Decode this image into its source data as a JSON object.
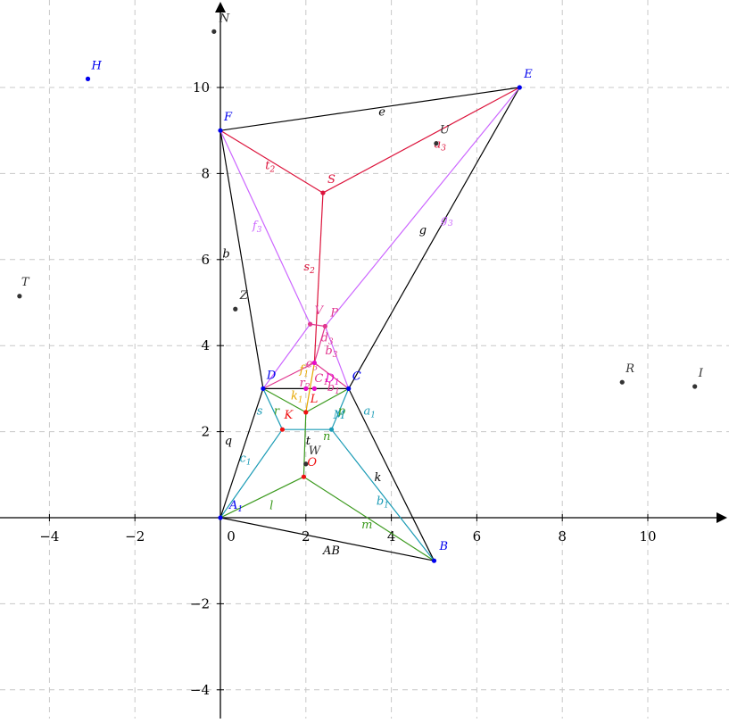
{
  "axes": {
    "x_range": [
      -5.2,
      11.8
    ],
    "y_range": [
      -4.6,
      11.8
    ],
    "x_ticks": [
      -4,
      -2,
      0,
      2,
      4,
      6,
      8,
      10
    ],
    "y_ticks": [
      -4,
      -2,
      2,
      4,
      6,
      8,
      10
    ],
    "x_tick_labels": [
      "−4",
      "−2",
      "0",
      "2",
      "4",
      "6",
      "8",
      "10"
    ],
    "y_tick_labels": [
      "−4",
      "−2",
      "2",
      "4",
      "6",
      "8",
      "10"
    ],
    "grid": true
  },
  "colors": {
    "black": "#000000",
    "blue": "#0000ee",
    "crimson": "#dc143c",
    "violet": "#cc66ff",
    "teal": "#1a9bb5",
    "green": "#3c9a1e",
    "gold": "#e6a800",
    "pink": "#e0378f",
    "magenta": "#e60ac8",
    "red": "#ee1111",
    "gray": "#333333"
  },
  "points": [
    {
      "name": "A1",
      "label": "A",
      "sub": "1",
      "x": 0,
      "y": 0,
      "color": "blue",
      "dx": 10,
      "dy": -10
    },
    {
      "name": "B",
      "label": "B",
      "x": 5.0,
      "y": -1.0,
      "color": "blue",
      "dx": 6,
      "dy": -12
    },
    {
      "name": "C",
      "label": "C",
      "x": 3.0,
      "y": 3.0,
      "color": "blue",
      "dx": 4,
      "dy": -10
    },
    {
      "name": "D",
      "label": "D",
      "x": 1.0,
      "y": 3.0,
      "color": "blue",
      "dx": 4,
      "dy": -11
    },
    {
      "name": "E",
      "label": "E",
      "x": 7.0,
      "y": 10.0,
      "color": "blue",
      "dx": 5,
      "dy": -11
    },
    {
      "name": "F",
      "label": "F",
      "x": 0,
      "y": 9.0,
      "color": "blue",
      "dx": 4,
      "dy": -11
    },
    {
      "name": "H",
      "label": "H",
      "x": -3.1,
      "y": 10.2,
      "color": "blue",
      "dx": 4,
      "dy": -11
    },
    {
      "name": "N",
      "label": "N",
      "x": -0.15,
      "y": 11.3,
      "color": "gray",
      "dx": 6,
      "dy": -11
    },
    {
      "name": "T",
      "label": "T",
      "x": -4.7,
      "y": 5.15,
      "color": "gray",
      "dx": 2,
      "dy": -12
    },
    {
      "name": "Z",
      "label": "Z",
      "x": 0.35,
      "y": 4.85,
      "color": "gray",
      "dx": 5,
      "dy": -11
    },
    {
      "name": "R",
      "label": "R",
      "x": 9.4,
      "y": 3.15,
      "color": "gray",
      "dx": 4,
      "dy": -11
    },
    {
      "name": "I",
      "label": "I",
      "x": 11.1,
      "y": 3.05,
      "color": "gray",
      "dx": 4,
      "dy": -11
    },
    {
      "name": "U",
      "label": "U",
      "x": 5.05,
      "y": 8.7,
      "color": "gray",
      "dx": 4,
      "dy": -11
    },
    {
      "name": "W",
      "label": "W",
      "x": 2.0,
      "y": 1.25,
      "color": "gray",
      "dx": 3,
      "dy": -11
    },
    {
      "name": "S",
      "label": "S",
      "x": 2.4,
      "y": 7.55,
      "color": "crimson",
      "dx": 5,
      "dy": -11
    },
    {
      "name": "V",
      "label": "V",
      "x": 2.1,
      "y": 4.5,
      "color": "pink",
      "dx": 5,
      "dy": -11
    },
    {
      "name": "P",
      "label": "P",
      "x": 2.45,
      "y": 4.45,
      "color": "pink",
      "dx": 6,
      "dy": -11
    },
    {
      "name": "L",
      "label": "L",
      "x": 2.0,
      "y": 2.45,
      "color": "red",
      "dx": 5,
      "dy": -11
    },
    {
      "name": "K",
      "label": "K",
      "x": 1.45,
      "y": 2.05,
      "color": "red",
      "dx": 2,
      "dy": -12
    },
    {
      "name": "O",
      "label": "O",
      "x": 1.95,
      "y": 0.95,
      "color": "red",
      "dx": 4,
      "dy": -12
    },
    {
      "name": "M",
      "label": "M",
      "x": 2.6,
      "y": 2.05,
      "color": "teal",
      "dx": 2,
      "dy": -12
    },
    {
      "name": "Q1",
      "label": "",
      "x": 2.2,
      "y": 3.0,
      "color": "magenta",
      "dx": 0,
      "dy": 0
    },
    {
      "name": "r2pt",
      "label": "",
      "x": 2.0,
      "y": 3.0,
      "color": "magenta",
      "dx": 0,
      "dy": 0
    },
    {
      "name": "Mid",
      "label": "",
      "x": 2.2,
      "y": 3.6,
      "color": "magenta",
      "dx": 0,
      "dy": 0
    }
  ],
  "segments": [
    {
      "name": "e",
      "from": "F",
      "to": "E",
      "color": "black"
    },
    {
      "name": "g",
      "from": "E",
      "to": "C",
      "color": "black"
    },
    {
      "name": "b",
      "from": "F",
      "to": "D",
      "color": "black"
    },
    {
      "name": "q",
      "from": "D",
      "to": "A1",
      "color": "black"
    },
    {
      "name": "AB",
      "from": "A1",
      "to": "B",
      "color": "black"
    },
    {
      "name": "k",
      "from": "B",
      "to": "C",
      "color": "black"
    },
    {
      "name": "DC",
      "from": "D",
      "to": "C",
      "color": "black"
    },
    {
      "name": "t2",
      "from": "F",
      "to": "S",
      "color": "crimson"
    },
    {
      "name": "a3",
      "from": "E",
      "to": "S",
      "color": "crimson"
    },
    {
      "name": "s2",
      "from": "S",
      "to": "Mid",
      "color": "crimson"
    },
    {
      "name": "f3",
      "from": "F",
      "to": "V",
      "color": "violet"
    },
    {
      "name": "g3",
      "from": "E",
      "to": "P",
      "color": "violet"
    },
    {
      "name": "VD",
      "from": "V",
      "to": "D",
      "color": "violet"
    },
    {
      "name": "PC",
      "from": "P",
      "to": "C",
      "color": "violet"
    },
    {
      "name": "VP",
      "from": "V",
      "to": "P",
      "color": "pink"
    },
    {
      "name": "d3",
      "from": "P",
      "to": "Mid",
      "color": "pink"
    },
    {
      "name": "DMid",
      "from": "D",
      "to": "Mid",
      "color": "pink"
    },
    {
      "name": "CMid",
      "from": "C",
      "to": "Mid",
      "color": "pink"
    },
    {
      "name": "c1",
      "from": "A1",
      "to": "K",
      "color": "teal"
    },
    {
      "name": "s",
      "from": "D",
      "to": "K",
      "color": "teal"
    },
    {
      "name": "KM",
      "from": "K",
      "to": "M",
      "color": "teal"
    },
    {
      "name": "a1",
      "from": "C",
      "to": "M",
      "color": "teal"
    },
    {
      "name": "b1",
      "from": "M",
      "to": "B",
      "color": "teal"
    },
    {
      "name": "l",
      "from": "A1",
      "to": "O",
      "color": "green"
    },
    {
      "name": "m",
      "from": "O",
      "to": "B",
      "color": "green"
    },
    {
      "name": "t",
      "from": "O",
      "to": "L",
      "color": "green"
    },
    {
      "name": "r",
      "from": "D",
      "to": "L",
      "color": "green"
    },
    {
      "name": "p",
      "from": "L",
      "to": "C",
      "color": "green"
    },
    {
      "name": "k1",
      "from": "L",
      "to": "Mid",
      "color": "gold"
    }
  ],
  "segment_labels": [
    {
      "text": "e",
      "x": 3.7,
      "y": 9.35,
      "color": "black"
    },
    {
      "text": "g",
      "x": 4.65,
      "y": 6.6,
      "color": "black"
    },
    {
      "text": "b",
      "x": 0.05,
      "y": 6.05,
      "color": "black"
    },
    {
      "text": "q",
      "x": 0.1,
      "y": 1.7,
      "color": "black"
    },
    {
      "text": "AB",
      "x": 2.4,
      "y": -0.85,
      "color": "black"
    },
    {
      "text": "k",
      "x": 3.6,
      "y": 0.85,
      "color": "black"
    },
    {
      "text": "t",
      "text_sub": "2",
      "x": 1.05,
      "y": 8.1,
      "color": "crimson"
    },
    {
      "text": "a",
      "text_sub": "3",
      "x": 5.0,
      "y": 8.6,
      "color": "crimson"
    },
    {
      "text": "s",
      "text_sub": "2",
      "x": 1.95,
      "y": 5.75,
      "color": "crimson"
    },
    {
      "text": "f",
      "text_sub": "3",
      "x": 0.75,
      "y": 6.7,
      "color": "violet"
    },
    {
      "text": "g",
      "text_sub": "3",
      "x": 5.15,
      "y": 6.85,
      "color": "violet"
    },
    {
      "text": "d",
      "text_sub": "3",
      "x": 2.35,
      "y": 4.1,
      "color": "pink"
    },
    {
      "text": "b",
      "text_sub": "3",
      "x": 2.45,
      "y": 3.8,
      "color": "pink"
    },
    {
      "text": "e",
      "text_sub": "3",
      "x": 2.0,
      "y": 3.5,
      "color": "pink"
    },
    {
      "text": "r",
      "text_sub": "2",
      "x": 1.85,
      "y": 3.05,
      "color": "pink"
    },
    {
      "text": "C",
      "text_sub": "1",
      "x": 2.2,
      "y": 3.15,
      "color": "pink"
    },
    {
      "text": "D",
      "text_sub": "1",
      "x": 2.45,
      "y": 3.15,
      "color": "magenta"
    },
    {
      "text": "b",
      "text_sub": "1",
      "x": 2.5,
      "y": 2.95,
      "color": "pink"
    },
    {
      "text": "f",
      "text_sub": "1",
      "x": 1.85,
      "y": 3.35,
      "color": "gold"
    },
    {
      "text": "k",
      "text_sub": "1",
      "x": 1.65,
      "y": 2.75,
      "color": "gold"
    },
    {
      "text": "s",
      "x": 0.85,
      "y": 2.4,
      "color": "teal"
    },
    {
      "text": "c",
      "text_sub": "1",
      "x": 0.45,
      "y": 1.3,
      "color": "teal"
    },
    {
      "text": "a",
      "text_sub": "1",
      "x": 3.35,
      "y": 2.4,
      "color": "teal"
    },
    {
      "text": "b",
      "text_sub": "1",
      "x": 3.65,
      "y": 0.3,
      "color": "teal"
    },
    {
      "text": "r",
      "x": 1.25,
      "y": 2.4,
      "color": "green"
    },
    {
      "text": "p",
      "x": 2.75,
      "y": 2.4,
      "color": "green"
    },
    {
      "text": "n",
      "x": 2.4,
      "y": 1.8,
      "color": "green"
    },
    {
      "text": "t",
      "x": 2.0,
      "y": 1.7,
      "color": "black"
    },
    {
      "text": "l",
      "x": 1.15,
      "y": 0.2,
      "color": "green"
    },
    {
      "text": "m",
      "x": 3.3,
      "y": -0.25,
      "color": "green"
    }
  ]
}
